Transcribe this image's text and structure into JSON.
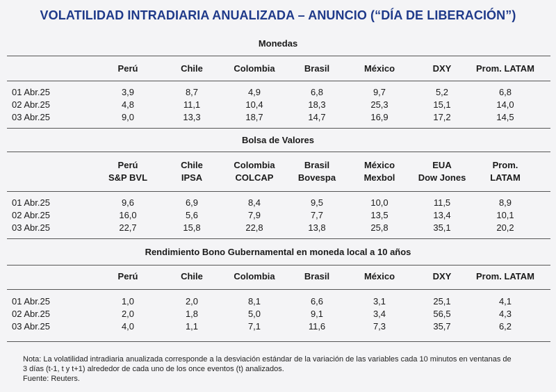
{
  "title": "VOLATILIDAD INTRADIARIA ANUALIZADA – ANUNCIO (“DÍA DE LIBERACIÓN”)",
  "sections": [
    {
      "title": "Monedas",
      "headers": [
        [
          "Perú"
        ],
        [
          "Chile"
        ],
        [
          "Colombia"
        ],
        [
          "Brasil"
        ],
        [
          "México"
        ],
        [
          "DXY"
        ],
        [
          "Prom. LATAM"
        ]
      ],
      "rows": [
        {
          "date": "01 Abr.25",
          "values": [
            "3,9",
            "8,7",
            "4,9",
            "6,8",
            "9,7",
            "5,2",
            "6,8"
          ]
        },
        {
          "date": "02 Abr.25",
          "values": [
            "4,8",
            "11,1",
            "10,4",
            "18,3",
            "25,3",
            "15,1",
            "14,0"
          ]
        },
        {
          "date": "03 Abr.25",
          "values": [
            "9,0",
            "13,3",
            "18,7",
            "14,7",
            "16,9",
            "17,2",
            "14,5"
          ]
        }
      ]
    },
    {
      "title": "Bolsa de Valores",
      "headers": [
        [
          "Perú",
          "S&P BVL"
        ],
        [
          "Chile",
          "IPSA"
        ],
        [
          "Colombia",
          "COLCAP"
        ],
        [
          "Brasil",
          "Bovespa"
        ],
        [
          "México",
          "Mexbol"
        ],
        [
          "EUA",
          "Dow Jones"
        ],
        [
          "Prom.",
          "LATAM"
        ]
      ],
      "rows": [
        {
          "date": "01 Abr.25",
          "values": [
            "9,6",
            "6,9",
            "8,4",
            "9,5",
            "10,0",
            "11,5",
            "8,9"
          ]
        },
        {
          "date": "02 Abr.25",
          "values": [
            "16,0",
            "5,6",
            "7,9",
            "7,7",
            "13,5",
            "13,4",
            "10,1"
          ]
        },
        {
          "date": "03 Abr.25",
          "values": [
            "22,7",
            "15,8",
            "22,8",
            "13,8",
            "25,8",
            "35,1",
            "20,2"
          ]
        }
      ]
    },
    {
      "title": "Rendimiento Bono Gubernamental en moneda local a 10 años",
      "headers": [
        [
          "Perú"
        ],
        [
          "Chile"
        ],
        [
          "Colombia"
        ],
        [
          "Brasil"
        ],
        [
          "México"
        ],
        [
          "DXY"
        ],
        [
          "Prom. LATAM"
        ]
      ],
      "rows": [
        {
          "date": "01 Abr.25",
          "values": [
            "1,0",
            "2,0",
            "8,1",
            "6,6",
            "3,1",
            "25,1",
            "4,1"
          ]
        },
        {
          "date": "02 Abr.25",
          "values": [
            "2,0",
            "1,8",
            "5,0",
            "9,1",
            "3,4",
            "56,5",
            "4,3"
          ]
        },
        {
          "date": "03 Abr.25",
          "values": [
            "4,0",
            "1,1",
            "7,1",
            "11,6",
            "7,3",
            "35,7",
            "6,2"
          ]
        }
      ]
    }
  ],
  "note": [
    "Nota: La volatilidad intradiaria anualizada corresponde a la desviación estándar de la variación de las variables cada 10 minutos en ventanas de",
    "3 días (t-1, t y t+1) alrededor de cada uno de los once eventos (t) analizados.",
    "Fuente: Reuters."
  ]
}
